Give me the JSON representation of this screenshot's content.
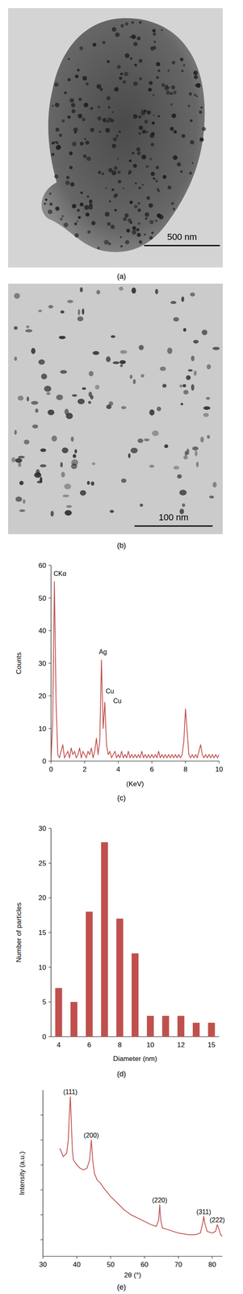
{
  "images": [
    {
      "label": "(a)",
      "scale_bar": "500 nm"
    },
    {
      "label": "(b)",
      "scale_bar": "100 nm"
    }
  ],
  "chart_data": [
    {
      "type": "line",
      "title": "(c)",
      "xlabel": "(KeV)",
      "ylabel": "Counts",
      "color": "#c0504d",
      "xlim": [
        0,
        10
      ],
      "xticks": [
        0,
        2,
        4,
        6,
        8,
        10
      ],
      "ylim": [
        0,
        60
      ],
      "yticks": [
        0,
        10,
        20,
        30,
        40,
        50,
        60
      ],
      "x": [
        0,
        0.1,
        0.2,
        0.3,
        0.4,
        0.5,
        0.6,
        0.7,
        0.8,
        0.9,
        1,
        1.1,
        1.2,
        1.3,
        1.4,
        1.5,
        1.6,
        1.7,
        1.8,
        1.9,
        2,
        2.1,
        2.2,
        2.3,
        2.4,
        2.5,
        2.6,
        2.7,
        2.8,
        2.9,
        3,
        3.1,
        3.2,
        3.3,
        3.4,
        3.5,
        3.6,
        3.7,
        3.8,
        3.9,
        4,
        4.1,
        4.2,
        4.3,
        4.4,
        4.5,
        4.6,
        4.7,
        4.8,
        4.9,
        5,
        5.1,
        5.2,
        5.3,
        5.4,
        5.5,
        5.6,
        5.7,
        5.8,
        5.9,
        6,
        6.1,
        6.2,
        6.3,
        6.4,
        6.5,
        6.6,
        6.7,
        6.8,
        6.9,
        7,
        7.1,
        7.2,
        7.3,
        7.4,
        7.5,
        7.6,
        7.7,
        7.8,
        7.9,
        8,
        8.1,
        8.2,
        8.3,
        8.4,
        8.5,
        8.6,
        8.7,
        8.8,
        8.9,
        9,
        9.1,
        9.2,
        9.3,
        9.4,
        9.5,
        9.6,
        9.7,
        9.8,
        9.9,
        10
      ],
      "values": [
        0,
        12,
        55,
        18,
        2,
        1,
        3,
        5,
        1,
        2,
        3,
        1,
        4,
        2,
        3,
        1,
        2,
        4,
        1,
        3,
        2,
        1,
        3,
        2,
        4,
        1,
        3,
        7,
        2,
        6,
        31,
        10,
        18,
        5,
        2,
        3,
        1,
        2,
        3,
        1,
        2,
        1,
        3,
        1,
        2,
        1,
        3,
        1,
        2,
        1,
        2,
        1,
        2,
        1,
        3,
        1,
        2,
        1,
        2,
        1,
        2,
        1,
        2,
        1,
        3,
        1,
        2,
        1,
        2,
        1,
        2,
        1,
        2,
        1,
        2,
        1,
        2,
        1,
        2,
        6,
        16,
        9,
        2,
        1,
        2,
        1,
        2,
        1,
        3,
        5,
        2,
        1,
        2,
        1,
        2,
        1,
        2,
        1,
        2,
        1,
        2
      ],
      "annotations": [
        {
          "text": "CKα",
          "x": 0.15,
          "y": 56
        },
        {
          "text": "Ag",
          "x": 2.85,
          "y": 32
        },
        {
          "text": "Cu",
          "x": 3.25,
          "y": 20
        },
        {
          "text": "Cu",
          "x": 3.7,
          "y": 17
        }
      ]
    },
    {
      "type": "bar",
      "title": "(d)",
      "xlabel": "Diameter (nm)",
      "ylabel": "Number of particles",
      "color": "#c0504d",
      "categories": [
        "4",
        null,
        "6",
        null,
        "8",
        null,
        "10",
        null,
        "12",
        null,
        "15"
      ],
      "values": [
        7,
        5,
        18,
        28,
        17,
        12,
        3,
        3,
        3,
        2,
        2
      ],
      "ylim": [
        0,
        30
      ],
      "yticks": [
        0,
        5,
        10,
        15,
        20,
        25,
        30
      ]
    },
    {
      "type": "line",
      "title": "(e)",
      "xlabel": "2θ (°)",
      "ylabel": "Intensity (a.u.)",
      "color": "#c0504d",
      "tick_labels": "x",
      "xlim": [
        30,
        83
      ],
      "xticks": [
        30,
        40,
        50,
        60,
        70,
        80
      ],
      "ylim": [
        0,
        100
      ],
      "yticks": [
        10,
        25,
        40,
        55,
        70,
        85
      ],
      "x": [
        35,
        36,
        37,
        37.5,
        37.8,
        38.1,
        38.4,
        38.7,
        39,
        40,
        41,
        42,
        43,
        43.8,
        44.3,
        44.7,
        45.2,
        46,
        47,
        48,
        50,
        52,
        54,
        56,
        58,
        60,
        62,
        63.5,
        64.2,
        64.5,
        64.8,
        65.3,
        67,
        70,
        73,
        75,
        76.5,
        77.2,
        77.5,
        77.8,
        78.5,
        80,
        81,
        81.5,
        81.9,
        82.5,
        83
      ],
      "values": [
        65,
        60,
        62,
        70,
        85,
        96,
        80,
        64,
        58,
        55,
        53,
        52,
        53,
        58,
        70,
        58,
        50,
        46,
        44,
        41,
        36,
        32,
        28,
        25,
        23,
        21,
        19,
        18,
        22,
        31,
        22,
        17,
        16,
        14,
        13,
        13,
        14,
        20,
        24,
        20,
        15,
        14,
        15,
        19,
        17,
        13,
        12
      ],
      "annotations": [
        {
          "text": "(111)",
          "x": 38.1,
          "y": 96
        },
        {
          "text": "(200)",
          "x": 44.3,
          "y": 70
        },
        {
          "text": "(220)",
          "x": 64.5,
          "y": 31
        },
        {
          "text": "(311)",
          "x": 77.5,
          "y": 24
        },
        {
          "text": "(222)",
          "x": 81.5,
          "y": 19
        }
      ]
    }
  ]
}
